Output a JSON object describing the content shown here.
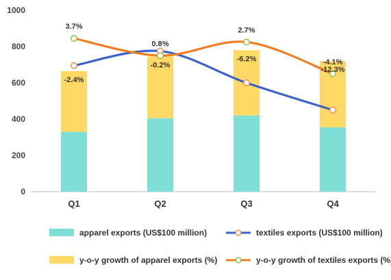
{
  "chart_data": {
    "type": "bar",
    "categories": [
      "Q1",
      "Q2",
      "Q3",
      "Q4"
    ],
    "ylim": [
      0,
      1000
    ],
    "yticks": [
      0,
      200,
      400,
      600,
      800,
      1000
    ],
    "grid": false,
    "legend_position": "bottom",
    "series": [
      {
        "name": "apparel exports (US$100 million)",
        "type": "bar",
        "stack": "base",
        "color": "#7fded6",
        "values": [
          330,
          405,
          420,
          355
        ]
      },
      {
        "name": "y-o-y growth of apparel exports (%)",
        "type": "bar",
        "stack": "top",
        "color": "#ffd966",
        "values": [
          335,
          340,
          360,
          365
        ],
        "labels": [
          "-2.4%",
          "-0.2%",
          "-6.2%",
          "-12.3%"
        ]
      },
      {
        "name": "textiles exports (US$100 million)",
        "type": "line",
        "color": "#3b63c9",
        "marker_face": "#ffffff",
        "marker_edge": "#ff8c4a",
        "values": [
          695,
          775,
          600,
          450
        ]
      },
      {
        "name": "y-o-y growth of textiles exports (%)",
        "type": "line",
        "color": "#f07d22",
        "marker_face": "#ffffff",
        "marker_edge": "#8dc63f",
        "values": [
          845,
          750,
          825,
          650
        ],
        "labels": [
          "3.7%",
          "0.8%",
          "2.7%",
          "-4.1%"
        ]
      }
    ]
  }
}
